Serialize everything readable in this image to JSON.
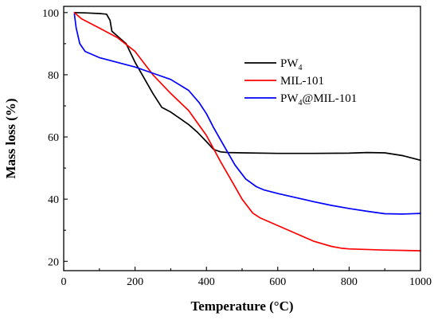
{
  "chart_data": {
    "type": "line",
    "xlabel": "Temperature (°C)",
    "ylabel": "Mass loss (%)",
    "xlim": [
      0,
      1000
    ],
    "ylim": [
      17,
      102
    ],
    "xticks": [
      0,
      200,
      400,
      600,
      800,
      1000
    ],
    "yticks": [
      20,
      40,
      60,
      80,
      100
    ],
    "grid": false,
    "legend_position": "top-right",
    "series": [
      {
        "name": "PW4",
        "label_main": "PW",
        "label_sub": "4",
        "label_after": "",
        "color": "#000000",
        "x": [
          30,
          60,
          100,
          120,
          130,
          135,
          150,
          175,
          200,
          225,
          250,
          275,
          300,
          325,
          350,
          375,
          400,
          420,
          440,
          460,
          500,
          600,
          700,
          800,
          850,
          900,
          950,
          1000
        ],
        "y": [
          100,
          99.9,
          99.7,
          99.5,
          97.5,
          94,
          92.5,
          90,
          84,
          79,
          74,
          69.5,
          68,
          66,
          64,
          61.5,
          58.5,
          56,
          55.2,
          55,
          54.9,
          54.7,
          54.7,
          54.8,
          55,
          54.9,
          54,
          52.5
        ]
      },
      {
        "name": "MIL-101",
        "label_main": "MIL-101",
        "label_sub": "",
        "label_after": "",
        "color": "#ff0000",
        "x": [
          30,
          50,
          100,
          150,
          200,
          250,
          300,
          350,
          400,
          440,
          470,
          500,
          530,
          550,
          600,
          650,
          700,
          750,
          780,
          800,
          900,
          1000
        ],
        "y": [
          100,
          98,
          95,
          92,
          87.5,
          80,
          74,
          68.5,
          60.5,
          52,
          46,
          40,
          35.5,
          34,
          31.5,
          29,
          26.5,
          24.8,
          24.2,
          24,
          23.6,
          23.4
        ]
      },
      {
        "name": "PW4@MIL-101",
        "label_main": "PW",
        "label_sub": "4",
        "label_after": "@MIL-101",
        "color": "#0000ff",
        "x": [
          30,
          35,
          45,
          60,
          80,
          100,
          150,
          200,
          250,
          300,
          350,
          380,
          400,
          420,
          450,
          480,
          510,
          540,
          560,
          600,
          650,
          700,
          750,
          800,
          850,
          900,
          950,
          1000
        ],
        "y": [
          99.5,
          95,
          90,
          87.5,
          86.5,
          85.5,
          84,
          82.5,
          80.5,
          78.5,
          75,
          71,
          67.5,
          63,
          57,
          51,
          46.5,
          44,
          43,
          41.8,
          40.5,
          39.2,
          38,
          37,
          36.1,
          35.3,
          35.2,
          35.4
        ]
      }
    ]
  }
}
